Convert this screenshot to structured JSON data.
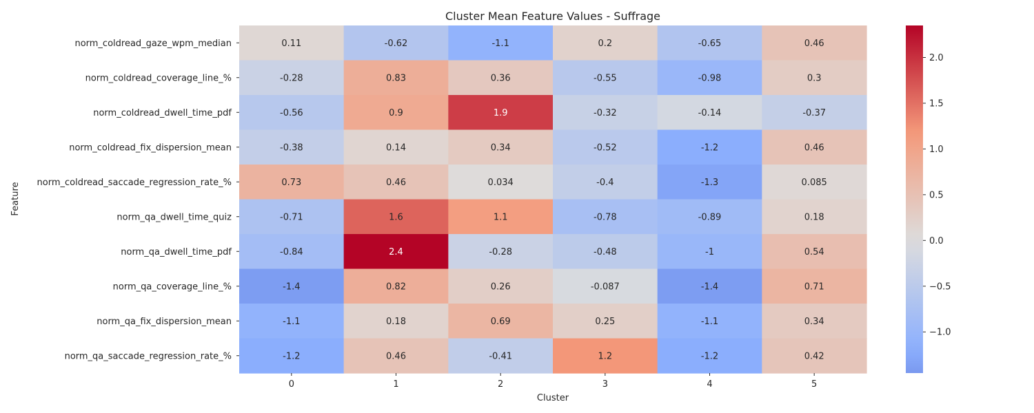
{
  "chart_data": {
    "type": "heatmap",
    "title": "Cluster Mean Feature Values - Suffrage",
    "xlabel": "Cluster",
    "ylabel": "Feature",
    "x_categories": [
      "0",
      "1",
      "2",
      "3",
      "4",
      "5"
    ],
    "y_categories": [
      "norm_coldread_gaze_wpm_median",
      "norm_coldread_coverage_line_%",
      "norm_coldread_dwell_time_pdf",
      "norm_coldread_fix_dispersion_mean",
      "norm_coldread_saccade_regression_rate_%",
      "norm_qa_dwell_time_quiz",
      "norm_qa_dwell_time_pdf",
      "norm_qa_coverage_line_%",
      "norm_qa_fix_dispersion_mean",
      "norm_qa_saccade_regression_rate_%"
    ],
    "values": [
      [
        0.11,
        -0.62,
        -1.1,
        0.2,
        -0.65,
        0.46
      ],
      [
        -0.28,
        0.83,
        0.36,
        -0.55,
        -0.98,
        0.3
      ],
      [
        -0.56,
        0.9,
        1.9,
        -0.32,
        -0.14,
        -0.37
      ],
      [
        -0.38,
        0.14,
        0.34,
        -0.52,
        -1.2,
        0.46
      ],
      [
        0.73,
        0.46,
        0.034,
        -0.4,
        -1.3,
        0.085
      ],
      [
        -0.71,
        1.6,
        1.1,
        -0.78,
        -0.89,
        0.18
      ],
      [
        -0.84,
        2.4,
        -0.28,
        -0.48,
        -1,
        0.54
      ],
      [
        -1.4,
        0.82,
        0.26,
        -0.087,
        -1.4,
        0.71
      ],
      [
        -1.1,
        0.18,
        0.69,
        0.25,
        -1.1,
        0.34
      ],
      [
        -1.2,
        0.46,
        -0.41,
        1.2,
        -1.2,
        0.42
      ]
    ],
    "colormap": "coolwarm",
    "colorbar_range": [
      -1.45,
      2.35
    ],
    "colorbar_ticks": [
      "2.0",
      "1.5",
      "1.0",
      "0.5",
      "0.0",
      "−0.5",
      "−1.0"
    ],
    "colorbar_tick_values": [
      2.0,
      1.5,
      1.0,
      0.5,
      0.0,
      -0.5,
      -1.0
    ]
  }
}
